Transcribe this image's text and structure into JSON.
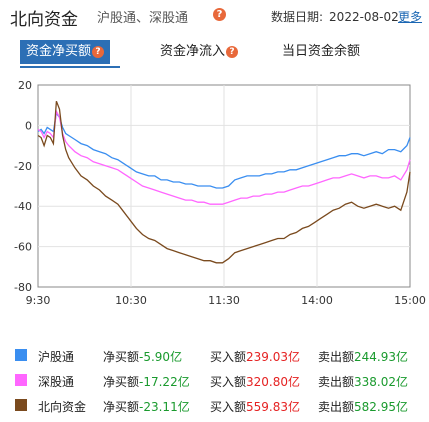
{
  "header": {
    "title": "北向资金",
    "subtitle": "沪股通、深股通",
    "help_icon": "?",
    "date_label": "数据日期:",
    "date_value": "2022-08-02",
    "more_label": "更多"
  },
  "tabs": [
    {
      "label": "资金净买额",
      "active": true
    },
    {
      "label": "资金净流入",
      "active": false
    },
    {
      "label": "当日资金余额",
      "active": false
    }
  ],
  "chart_data": {
    "type": "line",
    "ylim": [
      -80,
      20
    ],
    "yticks": [
      "20",
      "0",
      "-20",
      "-40",
      "-60",
      "-80"
    ],
    "xticks": [
      "9:30",
      "10:30",
      "11:30",
      "14:00",
      "15:00"
    ],
    "grid": true,
    "series": [
      {
        "name": "沪股通",
        "color": "#3a8ef0",
        "points": [
          [
            0,
            -3
          ],
          [
            2,
            -2
          ],
          [
            4,
            -4
          ],
          [
            6,
            -1
          ],
          [
            8,
            -2
          ],
          [
            10,
            -3
          ],
          [
            12,
            6
          ],
          [
            14,
            4
          ],
          [
            16,
            -1
          ],
          [
            18,
            -4
          ],
          [
            20,
            -5
          ],
          [
            24,
            -7
          ],
          [
            28,
            -9
          ],
          [
            32,
            -10
          ],
          [
            36,
            -12
          ],
          [
            40,
            -13
          ],
          [
            44,
            -14
          ],
          [
            48,
            -16
          ],
          [
            52,
            -17
          ],
          [
            56,
            -19
          ],
          [
            60,
            -21
          ],
          [
            64,
            -23
          ],
          [
            68,
            -24
          ],
          [
            72,
            -25
          ],
          [
            76,
            -25
          ],
          [
            80,
            -27
          ],
          [
            84,
            -27
          ],
          [
            88,
            -28
          ],
          [
            92,
            -28
          ],
          [
            96,
            -29
          ],
          [
            100,
            -29
          ],
          [
            104,
            -30
          ],
          [
            108,
            -30
          ],
          [
            112,
            -30
          ],
          [
            116,
            -31
          ],
          [
            120,
            -31
          ],
          [
            124,
            -30
          ],
          [
            128,
            -27
          ],
          [
            132,
            -26
          ],
          [
            136,
            -25
          ],
          [
            140,
            -25
          ],
          [
            144,
            -25
          ],
          [
            148,
            -24
          ],
          [
            152,
            -24
          ],
          [
            156,
            -23
          ],
          [
            160,
            -23
          ],
          [
            164,
            -22
          ],
          [
            168,
            -22
          ],
          [
            172,
            -21
          ],
          [
            176,
            -20
          ],
          [
            180,
            -19
          ],
          [
            184,
            -18
          ],
          [
            188,
            -17
          ],
          [
            192,
            -16
          ],
          [
            196,
            -15
          ],
          [
            200,
            -15
          ],
          [
            204,
            -14
          ],
          [
            208,
            -14
          ],
          [
            212,
            -15
          ],
          [
            216,
            -14
          ],
          [
            220,
            -13
          ],
          [
            224,
            -14
          ],
          [
            228,
            -12
          ],
          [
            232,
            -12
          ],
          [
            236,
            -13
          ],
          [
            240,
            -10
          ],
          [
            242,
            -6
          ]
        ]
      },
      {
        "name": "深股通",
        "color": "#ff66ff",
        "points": [
          [
            0,
            -2
          ],
          [
            2,
            -3
          ],
          [
            4,
            -6
          ],
          [
            6,
            -3
          ],
          [
            8,
            -4
          ],
          [
            10,
            -6
          ],
          [
            12,
            7
          ],
          [
            14,
            4
          ],
          [
            16,
            -4
          ],
          [
            18,
            -8
          ],
          [
            20,
            -10
          ],
          [
            24,
            -13
          ],
          [
            28,
            -15
          ],
          [
            32,
            -16
          ],
          [
            36,
            -18
          ],
          [
            40,
            -19
          ],
          [
            44,
            -20
          ],
          [
            48,
            -21
          ],
          [
            52,
            -22
          ],
          [
            56,
            -24
          ],
          [
            60,
            -26
          ],
          [
            64,
            -28
          ],
          [
            68,
            -30
          ],
          [
            72,
            -31
          ],
          [
            76,
            -32
          ],
          [
            80,
            -33
          ],
          [
            84,
            -34
          ],
          [
            88,
            -35
          ],
          [
            92,
            -36
          ],
          [
            96,
            -37
          ],
          [
            100,
            -37
          ],
          [
            104,
            -38
          ],
          [
            108,
            -38
          ],
          [
            112,
            -39
          ],
          [
            116,
            -39
          ],
          [
            120,
            -39
          ],
          [
            124,
            -38
          ],
          [
            128,
            -37
          ],
          [
            132,
            -36
          ],
          [
            136,
            -36
          ],
          [
            140,
            -35
          ],
          [
            144,
            -35
          ],
          [
            148,
            -34
          ],
          [
            152,
            -34
          ],
          [
            156,
            -33
          ],
          [
            160,
            -33
          ],
          [
            164,
            -32
          ],
          [
            168,
            -31
          ],
          [
            172,
            -30
          ],
          [
            176,
            -30
          ],
          [
            180,
            -29
          ],
          [
            184,
            -28
          ],
          [
            188,
            -27
          ],
          [
            192,
            -26
          ],
          [
            196,
            -26
          ],
          [
            200,
            -25
          ],
          [
            204,
            -24
          ],
          [
            208,
            -25
          ],
          [
            212,
            -26
          ],
          [
            216,
            -25
          ],
          [
            220,
            -25
          ],
          [
            224,
            -26
          ],
          [
            228,
            -26
          ],
          [
            232,
            -25
          ],
          [
            236,
            -27
          ],
          [
            240,
            -22
          ],
          [
            242,
            -17
          ]
        ]
      },
      {
        "name": "北向资金",
        "color": "#7a4a1e",
        "points": [
          [
            0,
            -5
          ],
          [
            2,
            -6
          ],
          [
            4,
            -10
          ],
          [
            6,
            -5
          ],
          [
            8,
            -6
          ],
          [
            10,
            -9
          ],
          [
            12,
            12
          ],
          [
            14,
            8
          ],
          [
            16,
            -5
          ],
          [
            18,
            -12
          ],
          [
            20,
            -16
          ],
          [
            24,
            -21
          ],
          [
            28,
            -25
          ],
          [
            32,
            -27
          ],
          [
            36,
            -30
          ],
          [
            40,
            -32
          ],
          [
            44,
            -35
          ],
          [
            48,
            -37
          ],
          [
            52,
            -39
          ],
          [
            56,
            -43
          ],
          [
            60,
            -47
          ],
          [
            64,
            -51
          ],
          [
            68,
            -54
          ],
          [
            72,
            -56
          ],
          [
            76,
            -57
          ],
          [
            80,
            -59
          ],
          [
            84,
            -61
          ],
          [
            88,
            -62
          ],
          [
            92,
            -63
          ],
          [
            96,
            -64
          ],
          [
            100,
            -65
          ],
          [
            104,
            -66
          ],
          [
            108,
            -67
          ],
          [
            112,
            -67
          ],
          [
            116,
            -68
          ],
          [
            120,
            -68
          ],
          [
            124,
            -66
          ],
          [
            128,
            -63
          ],
          [
            132,
            -62
          ],
          [
            136,
            -61
          ],
          [
            140,
            -60
          ],
          [
            144,
            -59
          ],
          [
            148,
            -58
          ],
          [
            152,
            -57
          ],
          [
            156,
            -56
          ],
          [
            160,
            -56
          ],
          [
            164,
            -54
          ],
          [
            168,
            -53
          ],
          [
            172,
            -51
          ],
          [
            176,
            -50
          ],
          [
            180,
            -48
          ],
          [
            184,
            -46
          ],
          [
            188,
            -44
          ],
          [
            192,
            -42
          ],
          [
            196,
            -41
          ],
          [
            200,
            -39
          ],
          [
            204,
            -38
          ],
          [
            208,
            -40
          ],
          [
            212,
            -41
          ],
          [
            216,
            -40
          ],
          [
            220,
            -39
          ],
          [
            224,
            -40
          ],
          [
            228,
            -41
          ],
          [
            232,
            -40
          ],
          [
            236,
            -42
          ],
          [
            240,
            -33
          ],
          [
            242,
            -23
          ]
        ]
      }
    ]
  },
  "legend": [
    {
      "name": "沪股通",
      "color": "#3a8ef0",
      "net_label": "净买额",
      "net_value": "-5.90亿",
      "buy_label": "买入额",
      "buy_value": "239.03亿",
      "sell_label": "卖出额",
      "sell_value": "244.93亿"
    },
    {
      "name": "深股通",
      "color": "#ff66ff",
      "net_label": "净买额",
      "net_value": "-17.22亿",
      "buy_label": "买入额",
      "buy_value": "320.80亿",
      "sell_label": "卖出额",
      "sell_value": "338.02亿"
    },
    {
      "name": "北向资金",
      "color": "#7a4a1e",
      "net_label": "净买额",
      "net_value": "-23.11亿",
      "buy_label": "买入额",
      "buy_value": "559.83亿",
      "sell_label": "卖出额",
      "sell_value": "582.95亿"
    }
  ]
}
